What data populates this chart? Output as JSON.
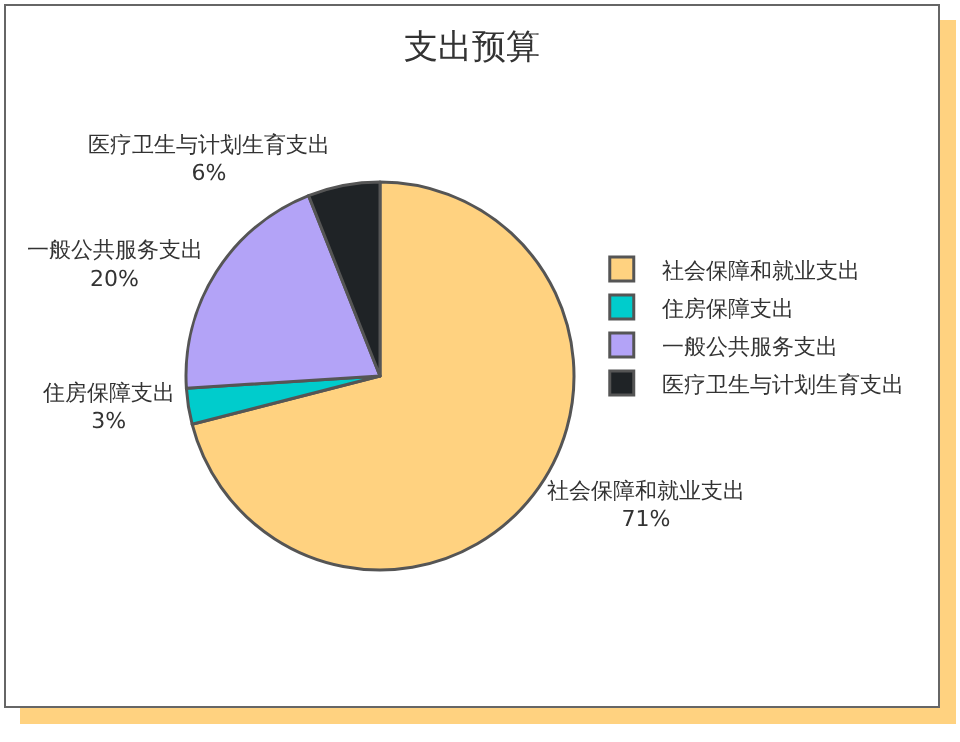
{
  "chart_data": {
    "type": "pie",
    "title": "支出预算",
    "categories": [
      "社会保障和就业支出",
      "住房保障支出",
      "一般公共服务支出",
      "医疗卫生与计划生育支出"
    ],
    "values": [
      71,
      3,
      20,
      6
    ],
    "colors": [
      "#ffd280",
      "#00cccc",
      "#b3a3f7",
      "#1f2326"
    ],
    "value_labels": [
      "71%",
      "3%",
      "20%",
      "6%"
    ],
    "legend": "right"
  }
}
